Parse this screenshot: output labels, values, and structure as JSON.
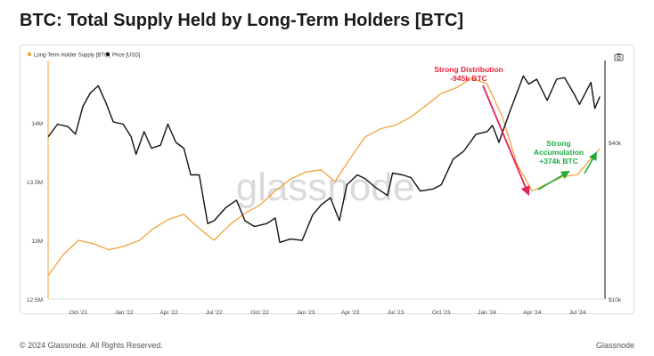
{
  "title": "BTC: Total Supply Held by Long-Term Holders [BTC]",
  "footer": {
    "copyright": "© 2024 Glassnode. All Rights Reserved.",
    "brand": "Glassnode"
  },
  "watermark": "glassnode",
  "icons": {
    "camera": "camera-icon"
  },
  "colors": {
    "lth_supply": "#f2a33a",
    "price": "#111111",
    "distribution_arrow": "#e8205a",
    "accumulation_arrow": "#22aa33"
  },
  "annotations": {
    "distribution": {
      "line1": "Strong Distribution",
      "line2": "-945k BTC",
      "color": "#e8203a"
    },
    "accumulation": {
      "line1": "Strong",
      "line2": "Accumulation",
      "line3": "+374k BTC",
      "color": "#22aa44"
    }
  },
  "chart_data": {
    "type": "line",
    "title": "BTC: Total Supply Held by Long-Term Holders [BTC]",
    "legend_position": "top-left",
    "grid": false,
    "x_ticks": [
      "Oct '21",
      "Jan '22",
      "Apr '22",
      "Jul '22",
      "Oct '22",
      "Jan '23",
      "Apr '23",
      "Jul '23",
      "Oct '23",
      "Jan '24",
      "Apr '24",
      "Jul '24"
    ],
    "x_tick_dates": [
      "2021-10-01",
      "2022-01-01",
      "2022-04-01",
      "2022-07-01",
      "2022-10-01",
      "2023-01-01",
      "2023-04-01",
      "2023-07-01",
      "2023-10-01",
      "2024-01-01",
      "2024-04-01",
      "2024-07-01"
    ],
    "xlim": [
      "2021-08-01",
      "2024-08-20"
    ],
    "y_left": {
      "label": "",
      "ticks": [
        "12.5M",
        "13M",
        "13.5M",
        "14M"
      ],
      "tick_values": [
        12500000,
        13000000,
        13500000,
        14000000
      ],
      "range": [
        12500000,
        14500000
      ]
    },
    "y_right": {
      "label": "",
      "scale": "log",
      "ticks": [
        "$10k",
        "$40k"
      ],
      "tick_values": [
        10000,
        40000
      ],
      "range": [
        10000,
        80000
      ]
    },
    "series": [
      {
        "name": "Long-Term Holder Supply [BTC]",
        "axis": "left",
        "color": "#f2a33a",
        "points": [
          [
            "2021-08-01",
            12700000
          ],
          [
            "2021-09-01",
            12880000
          ],
          [
            "2021-10-01",
            13000000
          ],
          [
            "2021-11-01",
            12970000
          ],
          [
            "2021-12-01",
            12920000
          ],
          [
            "2022-01-01",
            12950000
          ],
          [
            "2022-02-01",
            13000000
          ],
          [
            "2022-03-01",
            13100000
          ],
          [
            "2022-04-01",
            13180000
          ],
          [
            "2022-05-01",
            13220000
          ],
          [
            "2022-06-01",
            13100000
          ],
          [
            "2022-07-01",
            13000000
          ],
          [
            "2022-08-01",
            13130000
          ],
          [
            "2022-09-01",
            13230000
          ],
          [
            "2022-10-01",
            13300000
          ],
          [
            "2022-11-01",
            13420000
          ],
          [
            "2022-12-01",
            13520000
          ],
          [
            "2023-01-01",
            13580000
          ],
          [
            "2023-02-01",
            13600000
          ],
          [
            "2023-03-01",
            13500000
          ],
          [
            "2023-04-01",
            13700000
          ],
          [
            "2023-05-01",
            13880000
          ],
          [
            "2023-06-01",
            13950000
          ],
          [
            "2023-07-01",
            13980000
          ],
          [
            "2023-08-01",
            14050000
          ],
          [
            "2023-09-01",
            14150000
          ],
          [
            "2023-10-01",
            14250000
          ],
          [
            "2023-11-01",
            14300000
          ],
          [
            "2023-12-01",
            14380000
          ],
          [
            "2024-01-01",
            14330000
          ],
          [
            "2024-02-01",
            14050000
          ],
          [
            "2024-03-01",
            13650000
          ],
          [
            "2024-04-01",
            13420000
          ],
          [
            "2024-05-01",
            13480000
          ],
          [
            "2024-06-01",
            13540000
          ],
          [
            "2024-07-01",
            13560000
          ],
          [
            "2024-08-15",
            13780000
          ]
        ]
      },
      {
        "name": "Price [USD]",
        "axis": "right",
        "color": "#111111",
        "points": [
          [
            "2021-08-01",
            42000
          ],
          [
            "2021-08-20",
            47000
          ],
          [
            "2021-09-10",
            46000
          ],
          [
            "2021-09-25",
            43000
          ],
          [
            "2021-10-10",
            55000
          ],
          [
            "2021-10-25",
            62000
          ],
          [
            "2021-11-10",
            66000
          ],
          [
            "2021-11-25",
            57000
          ],
          [
            "2021-12-10",
            48000
          ],
          [
            "2021-12-30",
            47000
          ],
          [
            "2022-01-15",
            42000
          ],
          [
            "2022-01-25",
            36000
          ],
          [
            "2022-02-10",
            44000
          ],
          [
            "2022-02-25",
            38000
          ],
          [
            "2022-03-15",
            39000
          ],
          [
            "2022-03-30",
            47000
          ],
          [
            "2022-04-15",
            40000
          ],
          [
            "2022-05-01",
            38000
          ],
          [
            "2022-05-15",
            30000
          ],
          [
            "2022-06-01",
            30000
          ],
          [
            "2022-06-18",
            19500
          ],
          [
            "2022-07-01",
            20000
          ],
          [
            "2022-07-25",
            22500
          ],
          [
            "2022-08-15",
            24000
          ],
          [
            "2022-09-01",
            20000
          ],
          [
            "2022-09-20",
            19000
          ],
          [
            "2022-10-15",
            19500
          ],
          [
            "2022-11-01",
            20500
          ],
          [
            "2022-11-10",
            16500
          ],
          [
            "2022-12-01",
            17000
          ],
          [
            "2022-12-25",
            16800
          ],
          [
            "2023-01-15",
            21000
          ],
          [
            "2023-02-01",
            23000
          ],
          [
            "2023-02-20",
            24500
          ],
          [
            "2023-03-10",
            20000
          ],
          [
            "2023-03-25",
            27500
          ],
          [
            "2023-04-15",
            30000
          ],
          [
            "2023-05-01",
            29000
          ],
          [
            "2023-05-20",
            27000
          ],
          [
            "2023-06-15",
            25000
          ],
          [
            "2023-06-25",
            30500
          ],
          [
            "2023-07-15",
            30000
          ],
          [
            "2023-08-01",
            29300
          ],
          [
            "2023-08-20",
            26000
          ],
          [
            "2023-09-15",
            26500
          ],
          [
            "2023-10-01",
            27500
          ],
          [
            "2023-10-25",
            34500
          ],
          [
            "2023-11-15",
            37000
          ],
          [
            "2023-12-10",
            43000
          ],
          [
            "2024-01-01",
            44000
          ],
          [
            "2024-01-12",
            46500
          ],
          [
            "2024-01-25",
            40000
          ],
          [
            "2024-02-15",
            52000
          ],
          [
            "2024-03-01",
            62000
          ],
          [
            "2024-03-14",
            72000
          ],
          [
            "2024-03-25",
            67000
          ],
          [
            "2024-04-10",
            70000
          ],
          [
            "2024-05-01",
            58000
          ],
          [
            "2024-05-20",
            70000
          ],
          [
            "2024-06-05",
            71000
          ],
          [
            "2024-06-25",
            61000
          ],
          [
            "2024-07-05",
            56000
          ],
          [
            "2024-07-28",
            68000
          ],
          [
            "2024-08-05",
            54000
          ],
          [
            "2024-08-15",
            60000
          ]
        ]
      }
    ]
  }
}
